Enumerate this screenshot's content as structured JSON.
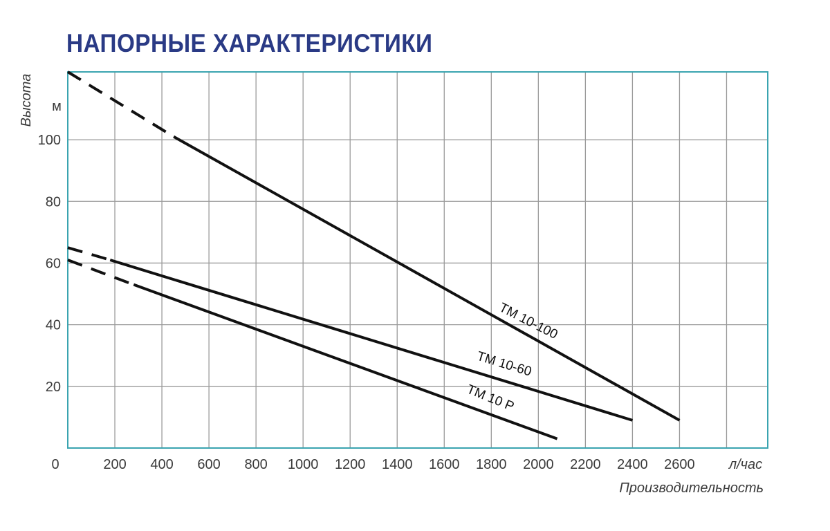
{
  "chart_data": {
    "type": "line",
    "title": "НАПОРНЫЕ ХАРАКТЕРИСТИКИ",
    "xlabel": "Производительность",
    "xunit": "л/час",
    "ylabel": "Высота",
    "yunit": "м",
    "origin_label": "0",
    "xlim": [
      0,
      2975
    ],
    "ylim": [
      0,
      122
    ],
    "x_ticks": [
      200,
      400,
      600,
      800,
      1000,
      1200,
      1400,
      1600,
      1800,
      2000,
      2200,
      2400,
      2600
    ],
    "y_ticks": [
      20,
      40,
      60,
      80,
      100
    ],
    "x_grid": [
      200,
      400,
      600,
      800,
      1000,
      1200,
      1400,
      1600,
      1800,
      2000,
      2200,
      2400,
      2600,
      2800
    ],
    "y_grid": [
      20,
      40,
      60,
      80,
      100
    ],
    "grid": true,
    "legend": "none",
    "series": [
      {
        "name": "TM 10-100",
        "dashed_segment": [
          [
            0,
            122
          ],
          [
            450,
            101
          ]
        ],
        "x": [
          450,
          2600
        ],
        "y": [
          101,
          9
        ],
        "label_at": [
          1950,
          40
        ],
        "label_angle": 27
      },
      {
        "name": "TM 10-60",
        "dashed_segment": [
          [
            0,
            65
          ],
          [
            180,
            61
          ]
        ],
        "x": [
          180,
          2400
        ],
        "y": [
          61,
          9
        ],
        "label_at": [
          1850,
          26
        ],
        "label_angle": 17
      },
      {
        "name": "TM 10 P",
        "dashed_segment": [
          [
            0,
            61
          ],
          [
            280,
            53
          ]
        ],
        "x": [
          280,
          2080
        ],
        "y": [
          53,
          3
        ],
        "label_at": [
          1790,
          15
        ],
        "label_angle": 22
      }
    ],
    "colors": {
      "title": "#2a3a85",
      "frame": "#3aa4b0",
      "grid": "#9a9a9a",
      "line": "#111111",
      "text": "#3a3a3a"
    }
  }
}
